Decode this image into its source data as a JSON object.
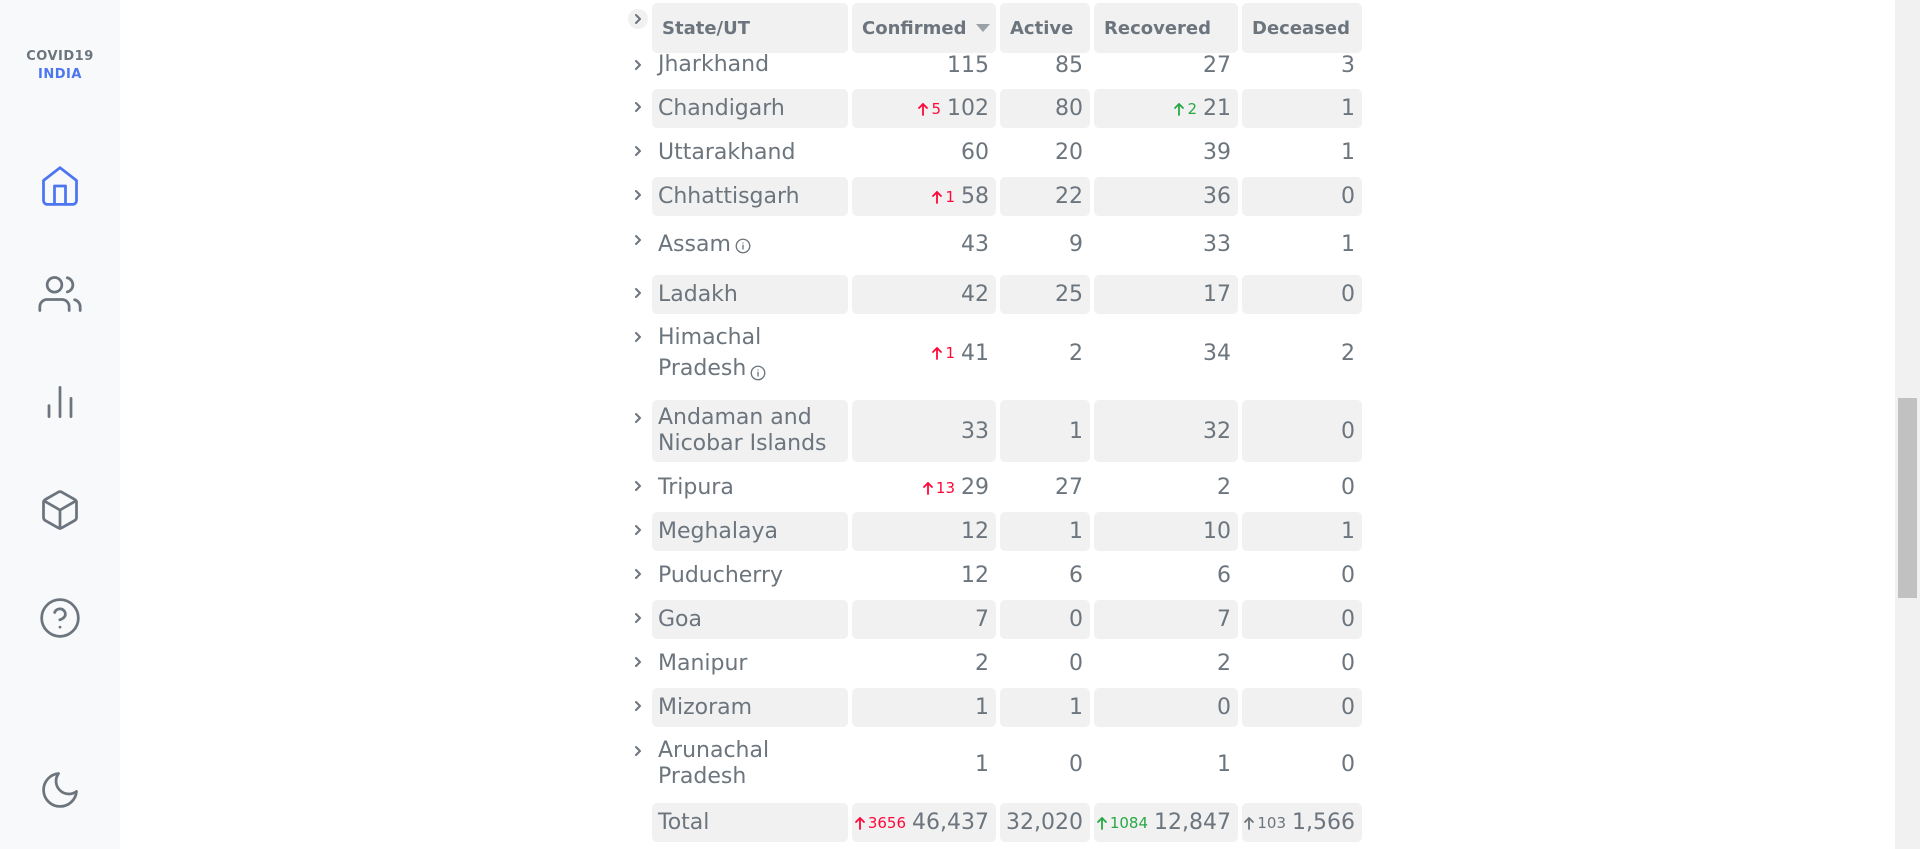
{
  "app": {
    "logo_line1": "COVID19",
    "logo_line2": "INDIA"
  },
  "nav": [
    {
      "name": "home-icon",
      "active": true
    },
    {
      "name": "users-icon",
      "active": false
    },
    {
      "name": "bar-chart-icon",
      "active": false
    },
    {
      "name": "box-icon",
      "active": false
    },
    {
      "name": "help-icon",
      "active": false
    },
    {
      "name": "moon-icon",
      "active": false
    }
  ],
  "table": {
    "headers": {
      "state": "State/UT",
      "confirmed": "Confirmed",
      "active": "Active",
      "recovered": "Recovered",
      "deceased": "Deceased"
    },
    "sort_column": "confirmed",
    "rows": [
      {
        "state": "Jharkhand",
        "confirmed": "115",
        "active": "85",
        "recovered": "27",
        "deceased": "3"
      },
      {
        "state": "Chandigarh",
        "confirmed_delta": "5",
        "confirmed": "102",
        "active": "80",
        "recovered_delta": "2",
        "recovered": "21",
        "deceased": "1"
      },
      {
        "state": "Uttarakhand",
        "confirmed": "60",
        "active": "20",
        "recovered": "39",
        "deceased": "1"
      },
      {
        "state": "Chhattisgarh",
        "confirmed_delta": "1",
        "confirmed": "58",
        "active": "22",
        "recovered": "36",
        "deceased": "0"
      },
      {
        "state": "Assam",
        "info": true,
        "confirmed": "43",
        "active": "9",
        "recovered": "33",
        "deceased": "1"
      },
      {
        "state": "Ladakh",
        "confirmed": "42",
        "active": "25",
        "recovered": "17",
        "deceased": "0"
      },
      {
        "state_line1": "Himachal",
        "state_line2": "Pradesh",
        "info": true,
        "confirmed_delta": "1",
        "confirmed": "41",
        "active": "2",
        "recovered": "34",
        "deceased": "2"
      },
      {
        "state_line1": "Andaman and",
        "state_line2": "Nicobar Islands",
        "confirmed": "33",
        "active": "1",
        "recovered": "32",
        "deceased": "0"
      },
      {
        "state": "Tripura",
        "confirmed_delta": "13",
        "confirmed": "29",
        "active": "27",
        "recovered": "2",
        "deceased": "0"
      },
      {
        "state": "Meghalaya",
        "confirmed": "12",
        "active": "1",
        "recovered": "10",
        "deceased": "1"
      },
      {
        "state": "Puducherry",
        "confirmed": "12",
        "active": "6",
        "recovered": "6",
        "deceased": "0"
      },
      {
        "state": "Goa",
        "confirmed": "7",
        "active": "0",
        "recovered": "7",
        "deceased": "0"
      },
      {
        "state": "Manipur",
        "confirmed": "2",
        "active": "0",
        "recovered": "2",
        "deceased": "0"
      },
      {
        "state": "Mizoram",
        "confirmed": "1",
        "active": "1",
        "recovered": "0",
        "deceased": "0"
      },
      {
        "state_line1": "Arunachal",
        "state_line2": "Pradesh",
        "confirmed": "1",
        "active": "0",
        "recovered": "1",
        "deceased": "0"
      }
    ],
    "total": {
      "label": "Total",
      "confirmed_delta": "3656",
      "confirmed": "46,437",
      "active": "32,020",
      "recovered_delta": "1084",
      "recovered": "12,847",
      "deceased_delta": "103",
      "deceased": "1,566"
    }
  },
  "colors": {
    "accent": "#4c75f2",
    "confirmed": "#ff073a",
    "recovered": "#28a745",
    "text": "#6c757d",
    "cell_bg": "#f1f1f1"
  }
}
